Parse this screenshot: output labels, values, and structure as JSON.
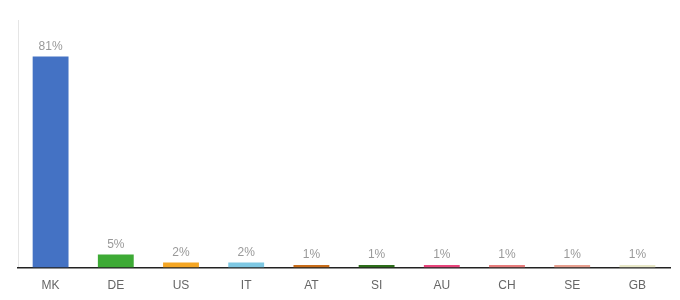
{
  "chart_data": {
    "type": "bar",
    "categories": [
      "MK",
      "DE",
      "US",
      "IT",
      "AT",
      "SI",
      "AU",
      "CH",
      "SE",
      "GB"
    ],
    "values": [
      81,
      5,
      2,
      2,
      1,
      1,
      1,
      1,
      1,
      1
    ],
    "value_labels": [
      "81%",
      "5%",
      "2%",
      "2%",
      "1%",
      "1%",
      "1%",
      "1%",
      "1%",
      "1%"
    ],
    "colors": [
      "#4472C4",
      "#3DAA35",
      "#F5A623",
      "#7EC8E3",
      "#C86D1A",
      "#2D6E1A",
      "#E8457C",
      "#E87D7D",
      "#E8A090",
      "#E8E8C8"
    ],
    "ylim": [
      0,
      95
    ],
    "data_labels": true,
    "tick_labels": "x",
    "grid": false
  }
}
